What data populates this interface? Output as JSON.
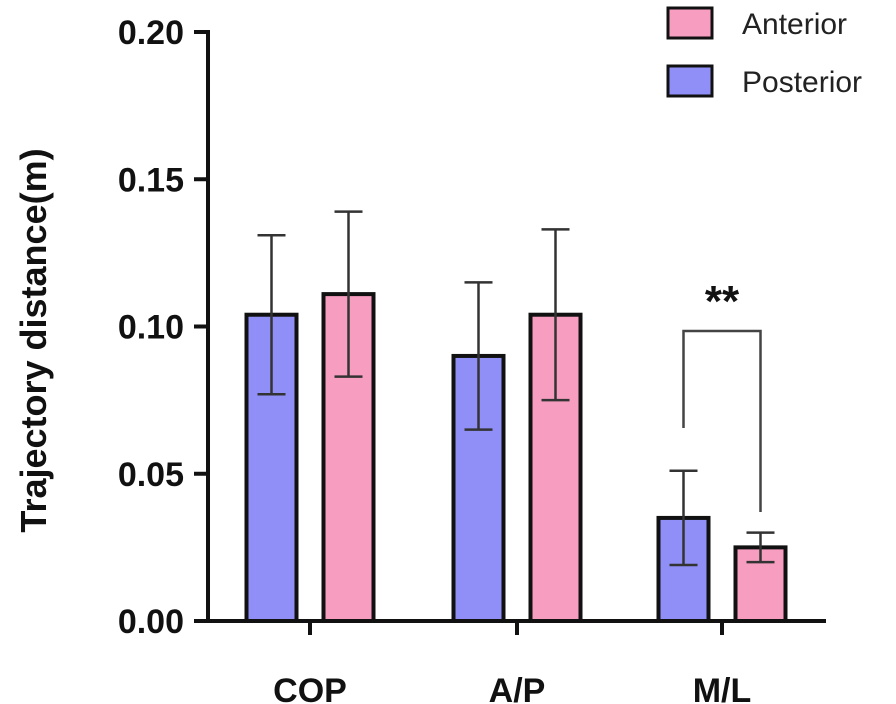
{
  "chart_data": {
    "type": "bar",
    "title": "",
    "xlabel": "",
    "ylabel": "Trajectory distance(m)",
    "ylim": [
      0,
      0.2
    ],
    "yticks": [
      "0.00",
      "0.05",
      "0.10",
      "0.15",
      "0.20"
    ],
    "categories": [
      "COP",
      "A/P",
      "M/L"
    ],
    "series": [
      {
        "name": "Posterior",
        "color": "#8f8ff7",
        "values": [
          0.104,
          0.09,
          0.035
        ],
        "errors": [
          0.027,
          0.025,
          0.016
        ]
      },
      {
        "name": "Anterior",
        "color": "#f79ec0",
        "values": [
          0.111,
          0.104,
          0.025
        ],
        "errors": [
          0.028,
          0.029,
          0.005
        ]
      }
    ],
    "legend": {
      "position": "top-right",
      "order": [
        "Anterior",
        "Posterior"
      ]
    },
    "annotations": [
      {
        "category": "M/L",
        "text": "**"
      }
    ],
    "grid": false
  }
}
